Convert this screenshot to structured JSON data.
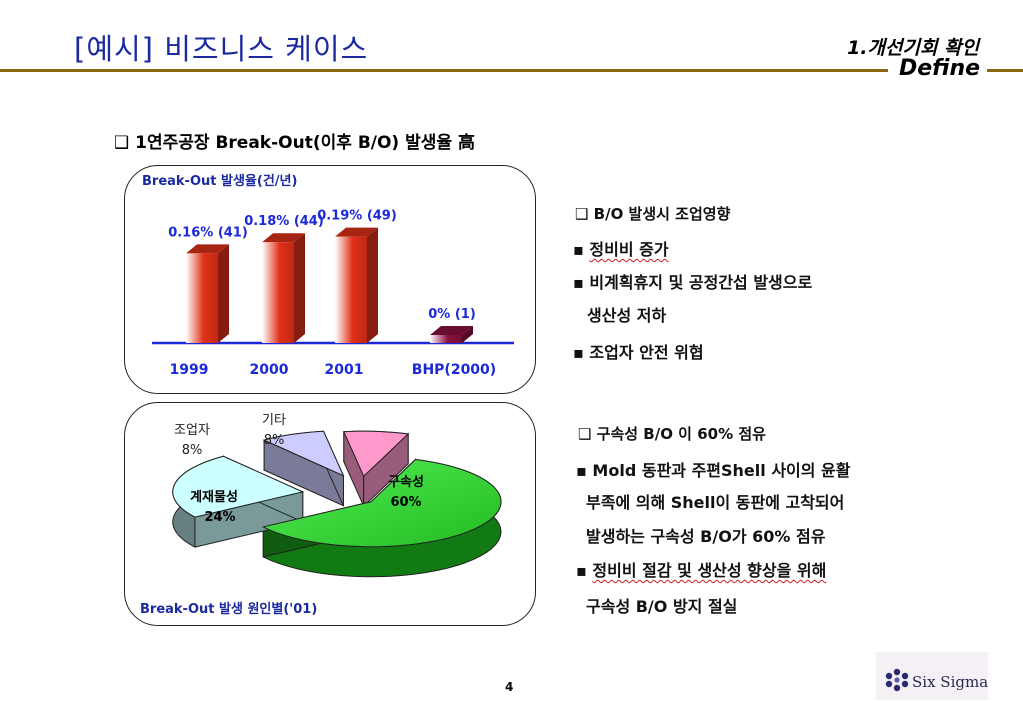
{
  "header": {
    "title": "[예시] 비즈니스 케이스",
    "section": "1.개선기회 확인",
    "phase": "Define"
  },
  "heading": "❑ 1연주공장 Break-Out(이후 B/O) 발생율 高",
  "chart_data": [
    {
      "type": "bar",
      "title": "Break-Out 발생율(건/년)",
      "categories": [
        "1999",
        "2000",
        "2001",
        "BHP(2000)"
      ],
      "values": [
        0.16,
        0.18,
        0.19,
        0.0
      ],
      "data_labels": [
        "0.16% (41)",
        "0.18% (44)",
        "0.19% (49)",
        "0% (1)"
      ],
      "counts": [
        41,
        44,
        49,
        1
      ],
      "unit": "%",
      "ylim": [
        0,
        0.2
      ],
      "colors": [
        "#e03018",
        "#e03018",
        "#e03018",
        "#8a1040"
      ]
    },
    {
      "type": "pie",
      "title": "Break-Out 발생 원인별('01)",
      "slices": [
        {
          "label": "구속성",
          "value": 60,
          "value_label": "60%",
          "color": "#33cc33"
        },
        {
          "label": "계재물성",
          "value": 24,
          "value_label": "24%",
          "color": "#ccffff"
        },
        {
          "label": "조업자",
          "value": 8,
          "value_label": "8%",
          "color": "#ccccff"
        },
        {
          "label": "기타",
          "value": 8,
          "value_label": "8%",
          "color": "#ff99cc"
        }
      ]
    }
  ],
  "right_panel_1": {
    "heading": "❑ B/O 발생시 조업영향",
    "items": [
      {
        "bullet": "▪",
        "text": "정비비 증가"
      },
      {
        "bullet": "▪",
        "text": "비계획휴지 및 공정간섭 발생으로"
      },
      {
        "bullet": "",
        "text": "생산성 저하"
      },
      {
        "bullet": "▪",
        "text": "조업자 안전 위협"
      }
    ]
  },
  "right_panel_2": {
    "heading": "❑ 구속성 B/O 이 60% 점유",
    "items": [
      {
        "bullet": "▪",
        "text": "Mold 동판과 주편Shell 사이의 윤활"
      },
      {
        "bullet": "",
        "text": "부족에 의해 Shell이 동판에 고착되어"
      },
      {
        "bullet": "",
        "text": "발생하는 구속성 B/O가 60% 점유"
      },
      {
        "bullet": "▪",
        "text": "정비비 절감 및 생산성 향상을 위해"
      },
      {
        "bullet": "",
        "text": "구속성  B/O 방지 절실"
      }
    ]
  },
  "footer": {
    "page_number": "4",
    "logo_text": "Six Sigma",
    "logo_icon": "six-sigma-logo-icon"
  }
}
